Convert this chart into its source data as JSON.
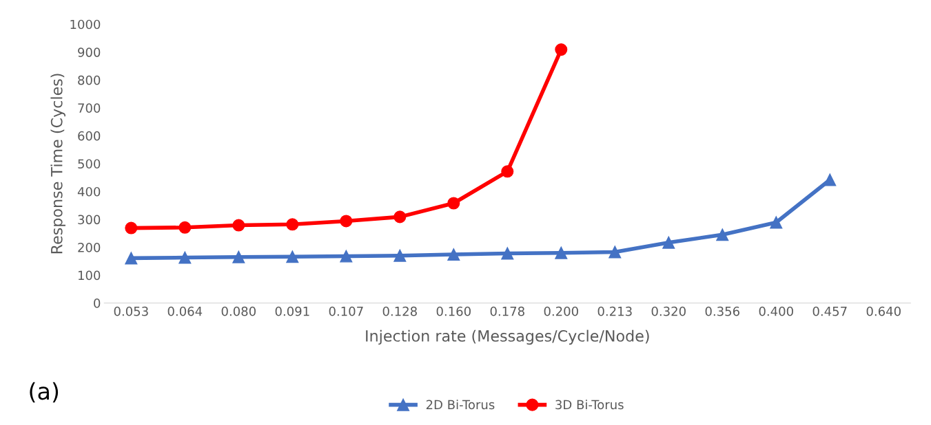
{
  "chart_data": {
    "type": "line",
    "xlabel": "Injection rate (Messages/Cycle/Node)",
    "ylabel": "Response Time (Cycles)",
    "categories": [
      "0.053",
      "0.064",
      "0.080",
      "0.091",
      "0.107",
      "0.128",
      "0.160",
      "0.178",
      "0.200",
      "0.213",
      "0.320",
      "0.356",
      "0.400",
      "0.457",
      "0.640"
    ],
    "series": [
      {
        "name": "2D Bi-Torus",
        "color": "#4472c4",
        "marker": "triangle",
        "values": [
          161,
          163,
          165,
          166,
          168,
          170,
          174,
          178,
          180,
          183,
          217,
          245,
          289,
          442,
          null
        ]
      },
      {
        "name": "3D Bi-Torus",
        "color": "#ff0000",
        "marker": "circle",
        "values": [
          269,
          271,
          279,
          282,
          294,
          309,
          358,
          472,
          909,
          null,
          null,
          null,
          null,
          null,
          null
        ]
      }
    ],
    "ylim": [
      0,
      1000
    ],
    "yticks": [
      0,
      100,
      200,
      300,
      400,
      500,
      600,
      700,
      800,
      900,
      1000
    ],
    "grid": false,
    "legend": "bottom",
    "annotations": [
      "(a)"
    ]
  }
}
